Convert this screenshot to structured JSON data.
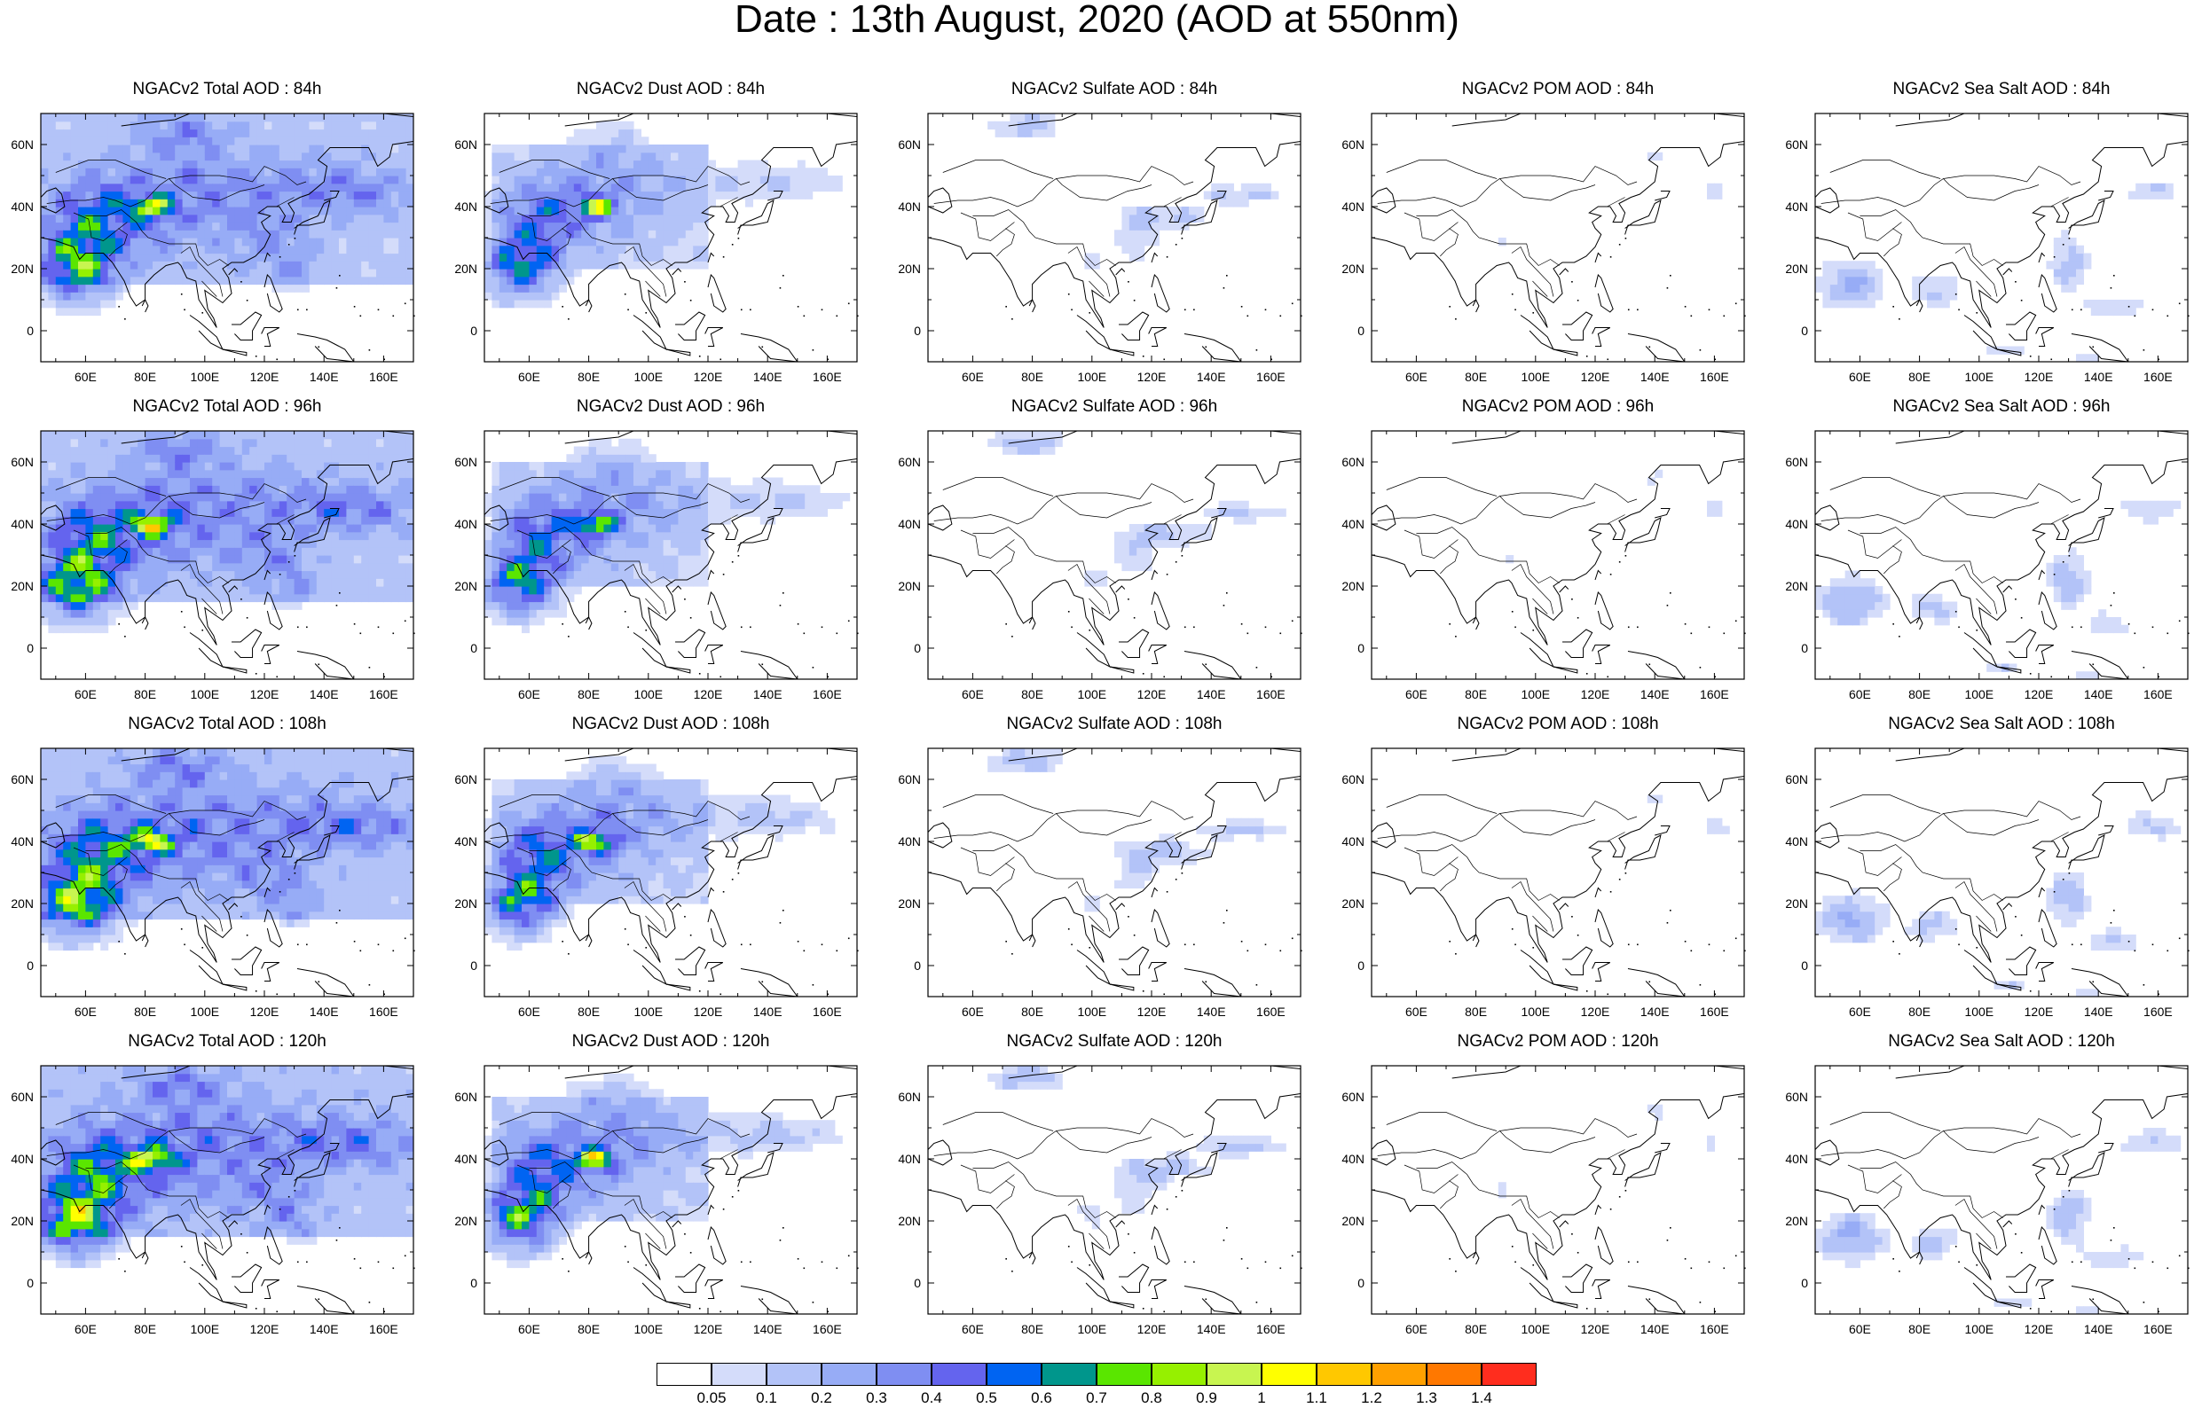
{
  "title": "Date : 13th August, 2020 (AOD at 550nm)",
  "lat_labels": [
    "60N",
    "40N",
    "20N",
    "0"
  ],
  "lon_labels": [
    "60E",
    "80E",
    "100E",
    "120E",
    "140E",
    "160E"
  ],
  "colorbar": {
    "colors": [
      "#ffffff",
      "#d4dcfa",
      "#b3c3f8",
      "#97acf6",
      "#7f8ef2",
      "#6464ee",
      "#0064f2",
      "#00968c",
      "#5ae600",
      "#96f000",
      "#c8f550",
      "#ffff00",
      "#ffc800",
      "#ffa000",
      "#ff7800",
      "#ff2d1e"
    ],
    "labels": [
      "0.05",
      "0.1",
      "0.2",
      "0.3",
      "0.4",
      "0.5",
      "0.6",
      "0.7",
      "0.8",
      "0.9",
      "1",
      "1.1",
      "1.2",
      "1.3",
      "1.4"
    ]
  },
  "panels": [
    {
      "title": "NGACv2 Total AOD : 84h",
      "species": "total"
    },
    {
      "title": "NGACv2 Dust AOD : 84h",
      "species": "dust"
    },
    {
      "title": "NGACv2 Sulfate AOD : 84h",
      "species": "sulfate"
    },
    {
      "title": "NGACv2 POM AOD : 84h",
      "species": "pom"
    },
    {
      "title": "NGACv2 Sea Salt AOD : 84h",
      "species": "seasalt"
    },
    {
      "title": "NGACv2 Total AOD : 96h",
      "species": "total"
    },
    {
      "title": "NGACv2 Dust AOD : 96h",
      "species": "dust"
    },
    {
      "title": "NGACv2 Sulfate AOD : 96h",
      "species": "sulfate"
    },
    {
      "title": "NGACv2 POM AOD : 96h",
      "species": "pom"
    },
    {
      "title": "NGACv2 Sea Salt AOD : 96h",
      "species": "seasalt"
    },
    {
      "title": "NGACv2 Total AOD : 108h",
      "species": "total"
    },
    {
      "title": "NGACv2 Dust AOD : 108h",
      "species": "dust"
    },
    {
      "title": "NGACv2 Sulfate AOD : 108h",
      "species": "sulfate"
    },
    {
      "title": "NGACv2 POM AOD : 108h",
      "species": "pom"
    },
    {
      "title": "NGACv2 Sea Salt AOD : 108h",
      "species": "seasalt"
    },
    {
      "title": "NGACv2 Total AOD : 120h",
      "species": "total"
    },
    {
      "title": "NGACv2 Dust AOD : 120h",
      "species": "dust"
    },
    {
      "title": "NGACv2 Sulfate AOD : 120h",
      "species": "sulfate"
    },
    {
      "title": "NGACv2 POM AOD : 120h",
      "species": "pom"
    },
    {
      "title": "NGACv2 Sea Salt  AOD : 120h",
      "species": "seasalt"
    }
  ]
}
